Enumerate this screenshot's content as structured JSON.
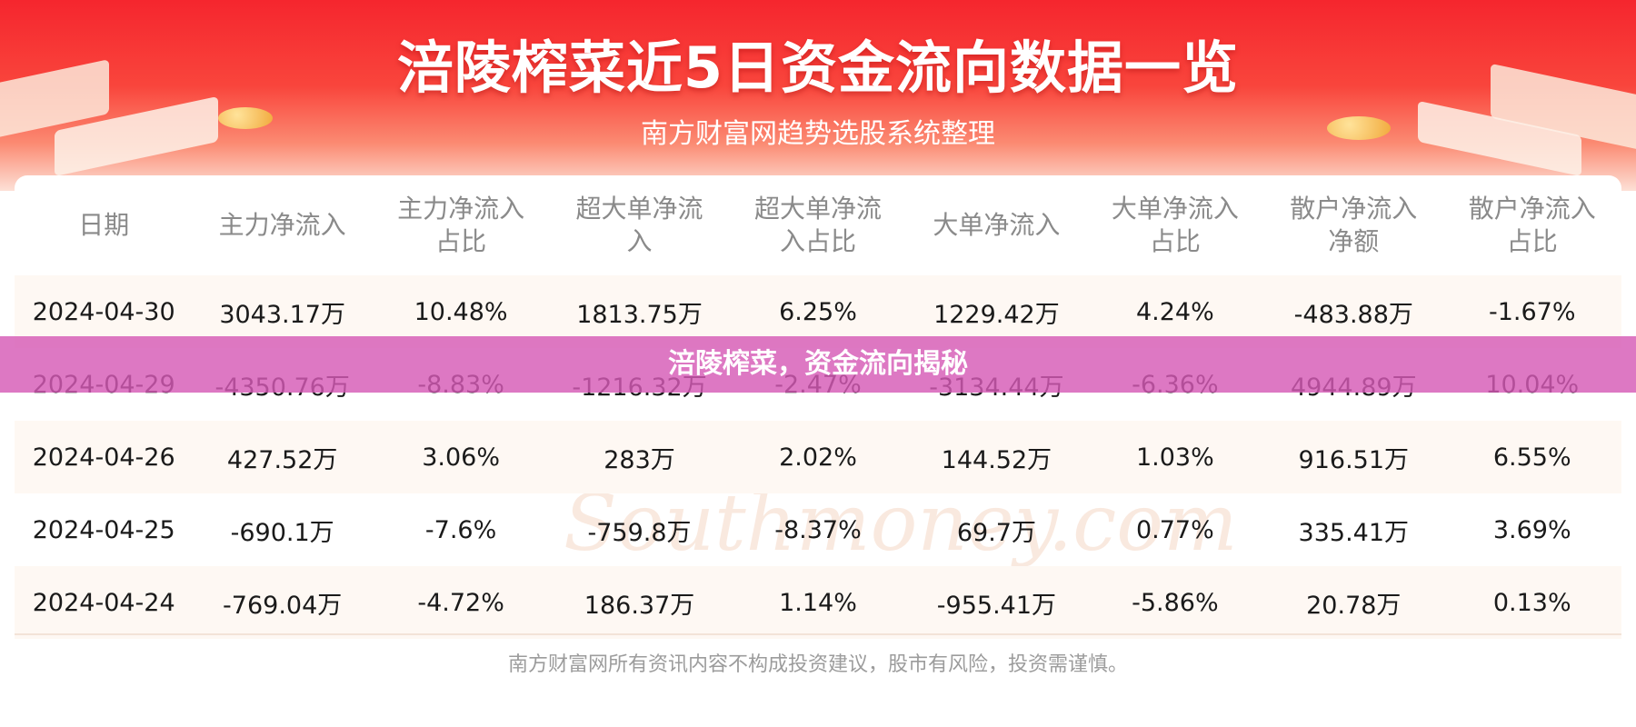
{
  "header": {
    "title": "涪陵榨菜近5日资金流向数据一览",
    "subtitle": "南方财富网趋势选股系统整理"
  },
  "overlay_banner": "涪陵榨菜，资金流向揭秘",
  "watermark": {
    "cn": "南方财富网",
    "en": "Southmoney.com"
  },
  "footer": "南方财富网所有资讯内容不构成投资建议，股市有风险，投资需谨慎。",
  "chart_data": {
    "type": "table",
    "title": "涪陵榨菜近5日资金流向数据一览",
    "columns": [
      [
        "日期"
      ],
      [
        "主力净流入"
      ],
      [
        "主力净流入",
        "占比"
      ],
      [
        "超大单净流",
        "入"
      ],
      [
        "超大单净流",
        "入占比"
      ],
      [
        "大单净流入"
      ],
      [
        "大单净流入",
        "占比"
      ],
      [
        "散户净流入",
        "净额"
      ],
      [
        "散户净流入",
        "占比"
      ]
    ],
    "rows": [
      [
        "2024-04-30",
        "3043.17万",
        "10.48%",
        "1813.75万",
        "6.25%",
        "1229.42万",
        "4.24%",
        "-483.88万",
        "-1.67%"
      ],
      [
        "2024-04-29",
        "-4350.76万",
        "-8.83%",
        "-1216.32万",
        "-2.47%",
        "-3134.44万",
        "-6.36%",
        "4944.89万",
        "10.04%"
      ],
      [
        "2024-04-26",
        "427.52万",
        "3.06%",
        "283万",
        "2.02%",
        "144.52万",
        "1.03%",
        "916.51万",
        "6.55%"
      ],
      [
        "2024-04-25",
        "-690.1万",
        "-7.6%",
        "-759.8万",
        "-8.37%",
        "69.7万",
        "0.77%",
        "335.41万",
        "3.69%"
      ],
      [
        "2024-04-24",
        "-769.04万",
        "-4.72%",
        "186.37万",
        "1.14%",
        "-955.41万",
        "-5.86%",
        "20.78万",
        "0.13%"
      ]
    ]
  },
  "colors": {
    "header_red": "#f5262e",
    "overlay_purple": "#d65ab6",
    "row_stripe": "#fef8f3",
    "header_text": "#8a8a8a"
  }
}
